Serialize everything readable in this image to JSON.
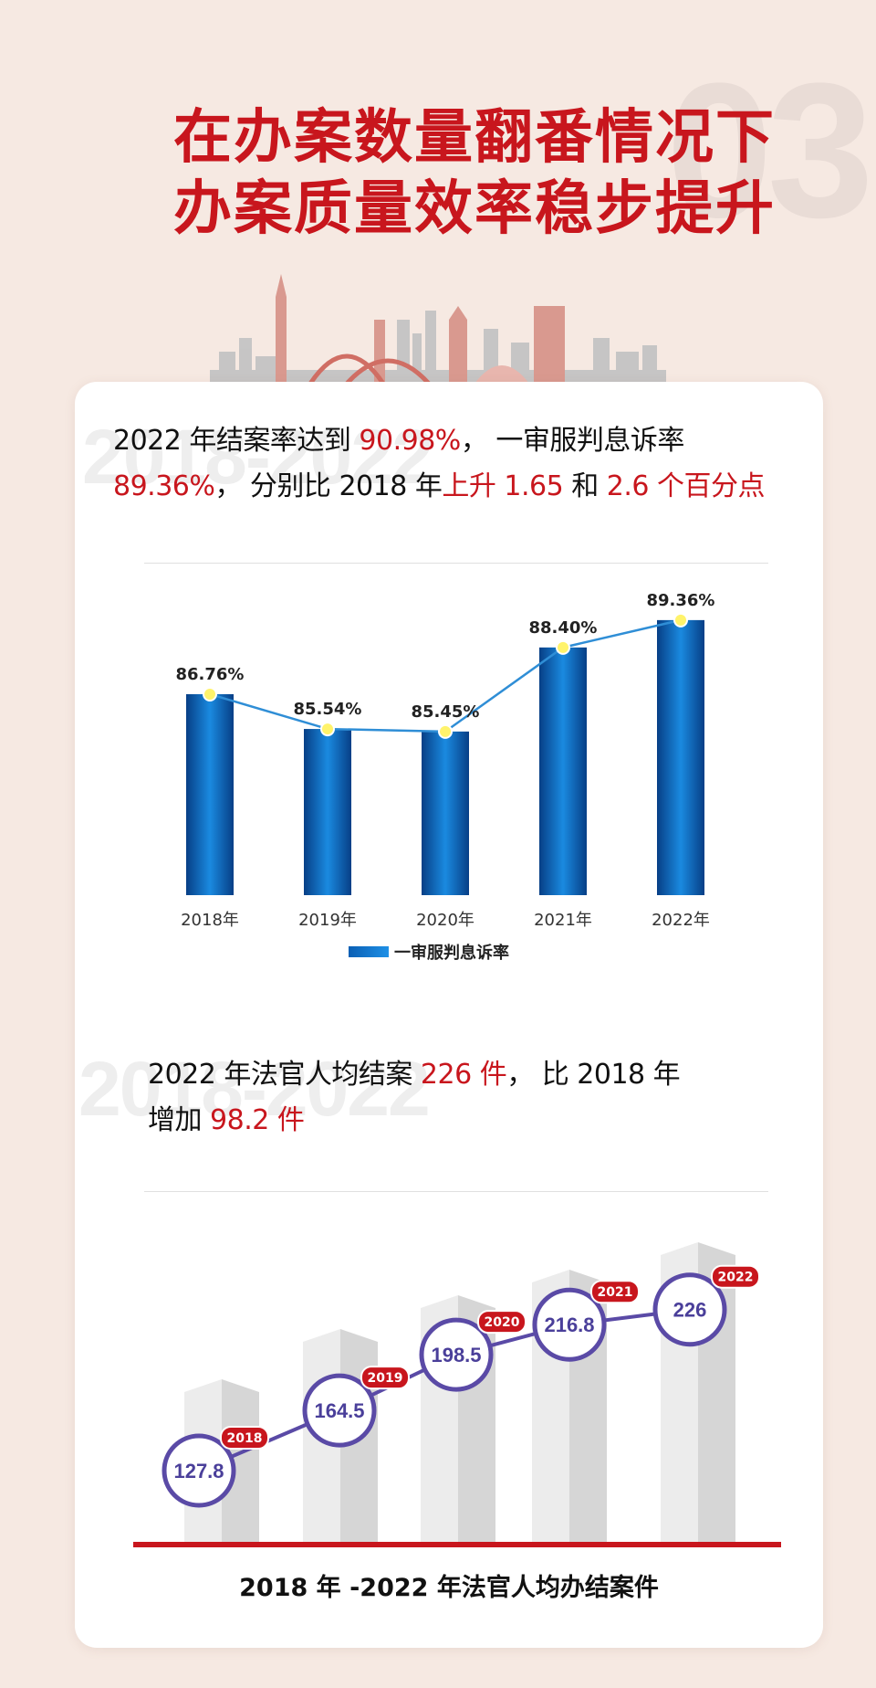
{
  "section_number": "03",
  "title_line1": "在办案数量翻番情况下",
  "title_line2": "办案质量效率稳步提升",
  "section1": {
    "watermark": "2018-2022",
    "p1": "2022 年结案率达到 ",
    "v1": "90.98%",
    "p2": "， 一审服判息诉率",
    "v2": "89.36%",
    "p3": "， 分别比 2018 年",
    "v3": "上升 1.65",
    "p4": " 和 ",
    "v4": "2.6 个百分点"
  },
  "section2": {
    "watermark": "2018-2022",
    "p1": "2022 年法官人均结案 ",
    "v1": "226 件",
    "p2": "， 比 2018 年",
    "p3": "增加 ",
    "v2": "98.2 件"
  },
  "colors": {
    "accent": "#c8161d",
    "bar_blue": "#0a5fb4",
    "line_blue": "#2f8ed6",
    "circle_purple": "#5a4aa6"
  },
  "chart_data": [
    {
      "type": "bar",
      "categories": [
        "2018年",
        "2019年",
        "2020年",
        "2021年",
        "2022年"
      ],
      "values": [
        86.76,
        85.54,
        85.45,
        88.4,
        89.36
      ],
      "labels": [
        "86.76%",
        "85.54%",
        "85.45%",
        "88.40%",
        "89.36%"
      ],
      "series": [
        {
          "name": "一审服判息诉率",
          "values": [
            86.76,
            85.54,
            85.45,
            88.4,
            89.36
          ]
        }
      ],
      "legend_position": "bottom",
      "grid": false
    },
    {
      "type": "line",
      "title": "2018 年 -2022 年法官人均办结案件",
      "x": [
        "2018",
        "2019",
        "2020",
        "2021",
        "2022"
      ],
      "values": [
        127.8,
        164.5,
        198.5,
        216.8,
        226
      ],
      "labels": [
        "127.8",
        "164.5",
        "198.5",
        "216.8",
        "226"
      ],
      "grid": false
    }
  ]
}
